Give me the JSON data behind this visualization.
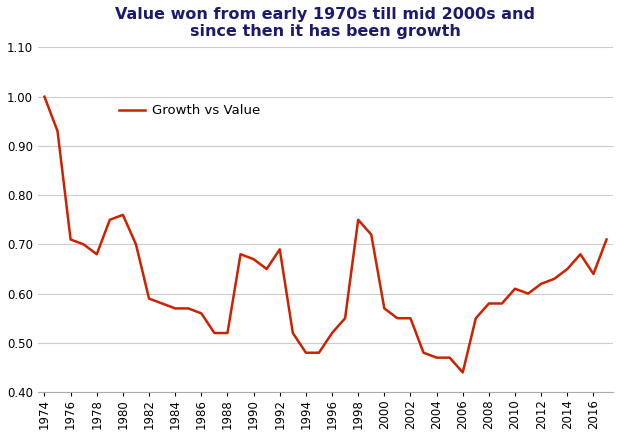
{
  "title": "Value won from early 1970s till mid 2000s and\nsince then it has been growth",
  "legend_label": "Growth vs Value",
  "line_color": "#CC2200",
  "background_color": "#ffffff",
  "years": [
    1974,
    1975,
    1976,
    1977,
    1978,
    1979,
    1980,
    1981,
    1982,
    1983,
    1984,
    1985,
    1986,
    1987,
    1988,
    1989,
    1990,
    1991,
    1992,
    1993,
    1994,
    1995,
    1996,
    1997,
    1998,
    1999,
    2000,
    2001,
    2002,
    2003,
    2004,
    2005,
    2006,
    2007,
    2008,
    2009,
    2010,
    2011,
    2012,
    2013,
    2014,
    2015,
    2016,
    2017
  ],
  "values": [
    1.0,
    0.93,
    0.71,
    0.7,
    0.68,
    0.75,
    0.76,
    0.7,
    0.59,
    0.58,
    0.57,
    0.57,
    0.56,
    0.52,
    0.52,
    0.68,
    0.67,
    0.65,
    0.69,
    0.52,
    0.48,
    0.48,
    0.52,
    0.55,
    0.75,
    0.72,
    0.57,
    0.55,
    0.55,
    0.48,
    0.47,
    0.47,
    0.44,
    0.55,
    0.58,
    0.58,
    0.61,
    0.6,
    0.62,
    0.63,
    0.65,
    0.68,
    0.64,
    0.71
  ],
  "ylim": [
    0.4,
    1.1
  ],
  "yticks": [
    0.4,
    0.5,
    0.6,
    0.7,
    0.8,
    0.9,
    1.0,
    1.1
  ],
  "xticks": [
    1974,
    1976,
    1978,
    1980,
    1982,
    1984,
    1986,
    1988,
    1990,
    1992,
    1994,
    1996,
    1998,
    2000,
    2002,
    2004,
    2006,
    2008,
    2010,
    2012,
    2014,
    2016
  ],
  "xlim": [
    1973.5,
    2017.5
  ],
  "grid_color": "#cccccc",
  "title_color": "#1a1a6e",
  "title_fontsize": 11.5,
  "legend_fontsize": 9.5,
  "tick_fontsize": 8.5,
  "linewidth": 1.8
}
